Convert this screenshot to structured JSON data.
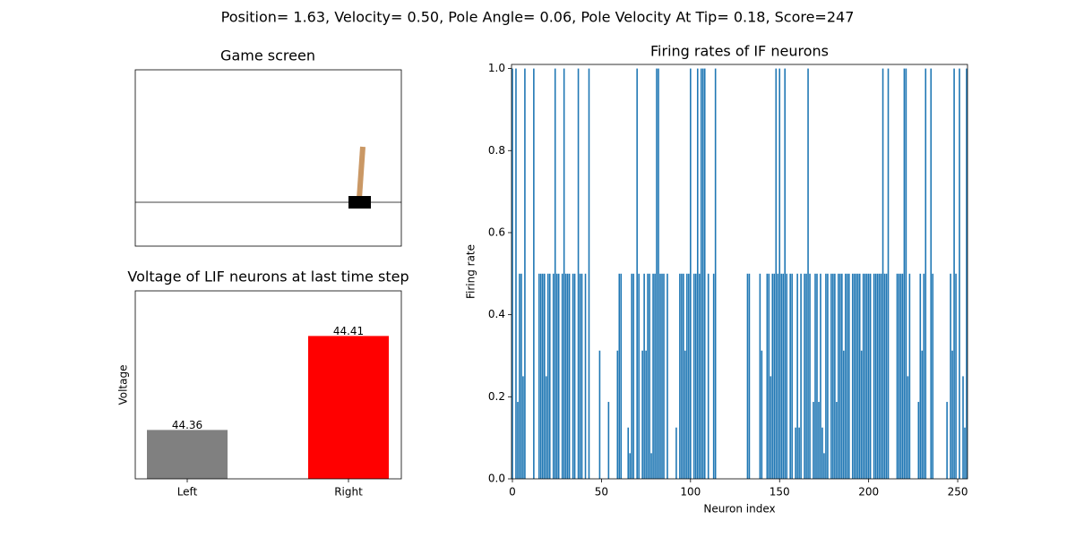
{
  "title": "Position= 1.63, Velocity= 0.50, Pole Angle= 0.06, Pole Velocity At Tip= 0.18, Score=247",
  "chart_data": [
    {
      "type": "image",
      "title": "Game screen"
    },
    {
      "type": "bar",
      "title": "Voltage of LIF neurons at last time step",
      "ylabel": "Voltage",
      "categories": [
        "Left",
        "Right"
      ],
      "values": [
        44.36,
        44.41
      ],
      "colors": [
        "#808080",
        "#ff0000"
      ],
      "ylim": [
        44.334,
        44.434
      ]
    },
    {
      "type": "bar",
      "title": "Firing rates of IF neurons",
      "xlabel": "Neuron index",
      "ylabel": "Firing rate",
      "color": "#1f77b4",
      "xlim": [
        -0.5,
        255.5
      ],
      "ylim": [
        0,
        1.01
      ],
      "xticks": [
        0,
        50,
        100,
        150,
        200,
        250
      ],
      "yticks": [
        {
          "value": 0,
          "label": "0.0"
        },
        {
          "value": 0.2,
          "label": "0.2"
        },
        {
          "value": 0.4,
          "label": "0.4"
        },
        {
          "value": 0.6,
          "label": "0.6"
        },
        {
          "value": 0.8,
          "label": "0.8"
        },
        {
          "value": 1,
          "label": "1.0"
        }
      ],
      "x": [
        0,
        1,
        2,
        3,
        4,
        5,
        6,
        7,
        8,
        9,
        10,
        11,
        12,
        13,
        14,
        15,
        16,
        17,
        18,
        19,
        20,
        21,
        22,
        23,
        24,
        25,
        26,
        27,
        28,
        29,
        30,
        31,
        32,
        33,
        34,
        35,
        36,
        37,
        38,
        39,
        40,
        41,
        42,
        43,
        44,
        45,
        46,
        47,
        48,
        49,
        50,
        51,
        52,
        53,
        54,
        55,
        56,
        57,
        58,
        59,
        60,
        61,
        62,
        63,
        64,
        65,
        66,
        67,
        68,
        69,
        70,
        71,
        72,
        73,
        74,
        75,
        76,
        77,
        78,
        79,
        80,
        81,
        82,
        83,
        84,
        85,
        86,
        87,
        88,
        89,
        90,
        91,
        92,
        93,
        94,
        95,
        96,
        97,
        98,
        99,
        100,
        101,
        102,
        103,
        104,
        105,
        106,
        107,
        108,
        109,
        110,
        111,
        112,
        113,
        114,
        115,
        116,
        117,
        118,
        119,
        120,
        121,
        122,
        123,
        124,
        125,
        126,
        127,
        128,
        129,
        130,
        131,
        132,
        133,
        134,
        135,
        136,
        137,
        138,
        139,
        140,
        141,
        142,
        143,
        144,
        145,
        146,
        147,
        148,
        149,
        150,
        151,
        152,
        153,
        154,
        155,
        156,
        157,
        158,
        159,
        160,
        161,
        162,
        163,
        164,
        165,
        166,
        167,
        168,
        169,
        170,
        171,
        172,
        173,
        174,
        175,
        176,
        177,
        178,
        179,
        180,
        181,
        182,
        183,
        184,
        185,
        186,
        187,
        188,
        189,
        190,
        191,
        192,
        193,
        194,
        195,
        196,
        197,
        198,
        199,
        200,
        201,
        202,
        203,
        204,
        205,
        206,
        207,
        208,
        209,
        210,
        211,
        212,
        213,
        214,
        215,
        216,
        217,
        218,
        219,
        220,
        221,
        222,
        223,
        224,
        225,
        226,
        227,
        228,
        229,
        230,
        231,
        232,
        233,
        234,
        235,
        236,
        237,
        238,
        239,
        240,
        241,
        242,
        243,
        244,
        245,
        246,
        247,
        248,
        249,
        250,
        251,
        252,
        253,
        254,
        255
      ],
      "values": [
        1,
        0,
        1,
        0.1875,
        0.5,
        0.5,
        0.25,
        1,
        0,
        0,
        0,
        0,
        1,
        0,
        0,
        0.5,
        0.5,
        0.5,
        0.5,
        0.25,
        0.5,
        0.5,
        0,
        0.5,
        1,
        0.5,
        0.5,
        0,
        0.5,
        1,
        0.5,
        0.5,
        0.5,
        0,
        0.5,
        0.5,
        0,
        1,
        0.5,
        0.5,
        0,
        0.5,
        0,
        1,
        0,
        0,
        0,
        0,
        0,
        0.3125,
        0,
        0,
        0,
        0,
        0.1875,
        0,
        0,
        0,
        0,
        0.3125,
        0.5,
        0.5,
        0,
        0,
        0,
        0.125,
        0.0625,
        0.5,
        0.5,
        0,
        1,
        0.5,
        0,
        0.3125,
        0.5,
        0.3125,
        0.5,
        0.5,
        0.0625,
        0.5,
        0.5,
        1,
        1,
        0.5,
        0.5,
        0.5,
        0,
        0.5,
        0,
        0,
        0,
        0,
        0.125,
        0,
        0.5,
        0.5,
        0.5,
        0.3125,
        0.5,
        0.5,
        1,
        0,
        0.5,
        0.5,
        1,
        0.5,
        1,
        1,
        1,
        0,
        0.5,
        0,
        0,
        0.5,
        1,
        0,
        0,
        0,
        0,
        0,
        0,
        0,
        0,
        0,
        0,
        0,
        0,
        0,
        0,
        0,
        0,
        0,
        0.5,
        0.5,
        0,
        0,
        0,
        0,
        0,
        0.5,
        0.3125,
        0,
        0,
        0.5,
        0.5,
        0.25,
        0.5,
        0.5,
        1,
        0.5,
        1,
        0.5,
        0.5,
        1,
        0.5,
        0,
        0.5,
        0.5,
        0,
        0.125,
        0.5,
        0.125,
        0.5,
        0,
        0.5,
        0.5,
        1,
        0.5,
        0,
        0.1875,
        0.5,
        0.5,
        0.1875,
        0.5,
        0.125,
        0.0625,
        0.5,
        0.5,
        0,
        0.5,
        0.5,
        0.5,
        0.1875,
        0.5,
        0.5,
        0.5,
        0.3125,
        0.5,
        0.5,
        0.5,
        0,
        0.5,
        0.5,
        0.5,
        0.5,
        0.5,
        0.3125,
        0.5,
        0.5,
        0.5,
        0.5,
        0.5,
        0,
        0.5,
        0.5,
        0.5,
        0.5,
        0.5,
        1,
        0.5,
        0.5,
        1,
        0,
        0,
        0,
        0,
        0.5,
        0.5,
        0.5,
        0.5,
        1,
        1,
        0.25,
        0.5,
        0,
        0,
        0,
        0,
        0.1875,
        0.5,
        0.3125,
        0.5,
        1,
        0,
        0,
        1,
        0.5,
        0,
        0,
        0,
        0,
        0,
        0,
        0,
        0.1875,
        0,
        0.5,
        0.3125,
        1,
        0.5,
        0,
        1,
        0,
        0.25,
        0.125,
        1
      ]
    }
  ]
}
